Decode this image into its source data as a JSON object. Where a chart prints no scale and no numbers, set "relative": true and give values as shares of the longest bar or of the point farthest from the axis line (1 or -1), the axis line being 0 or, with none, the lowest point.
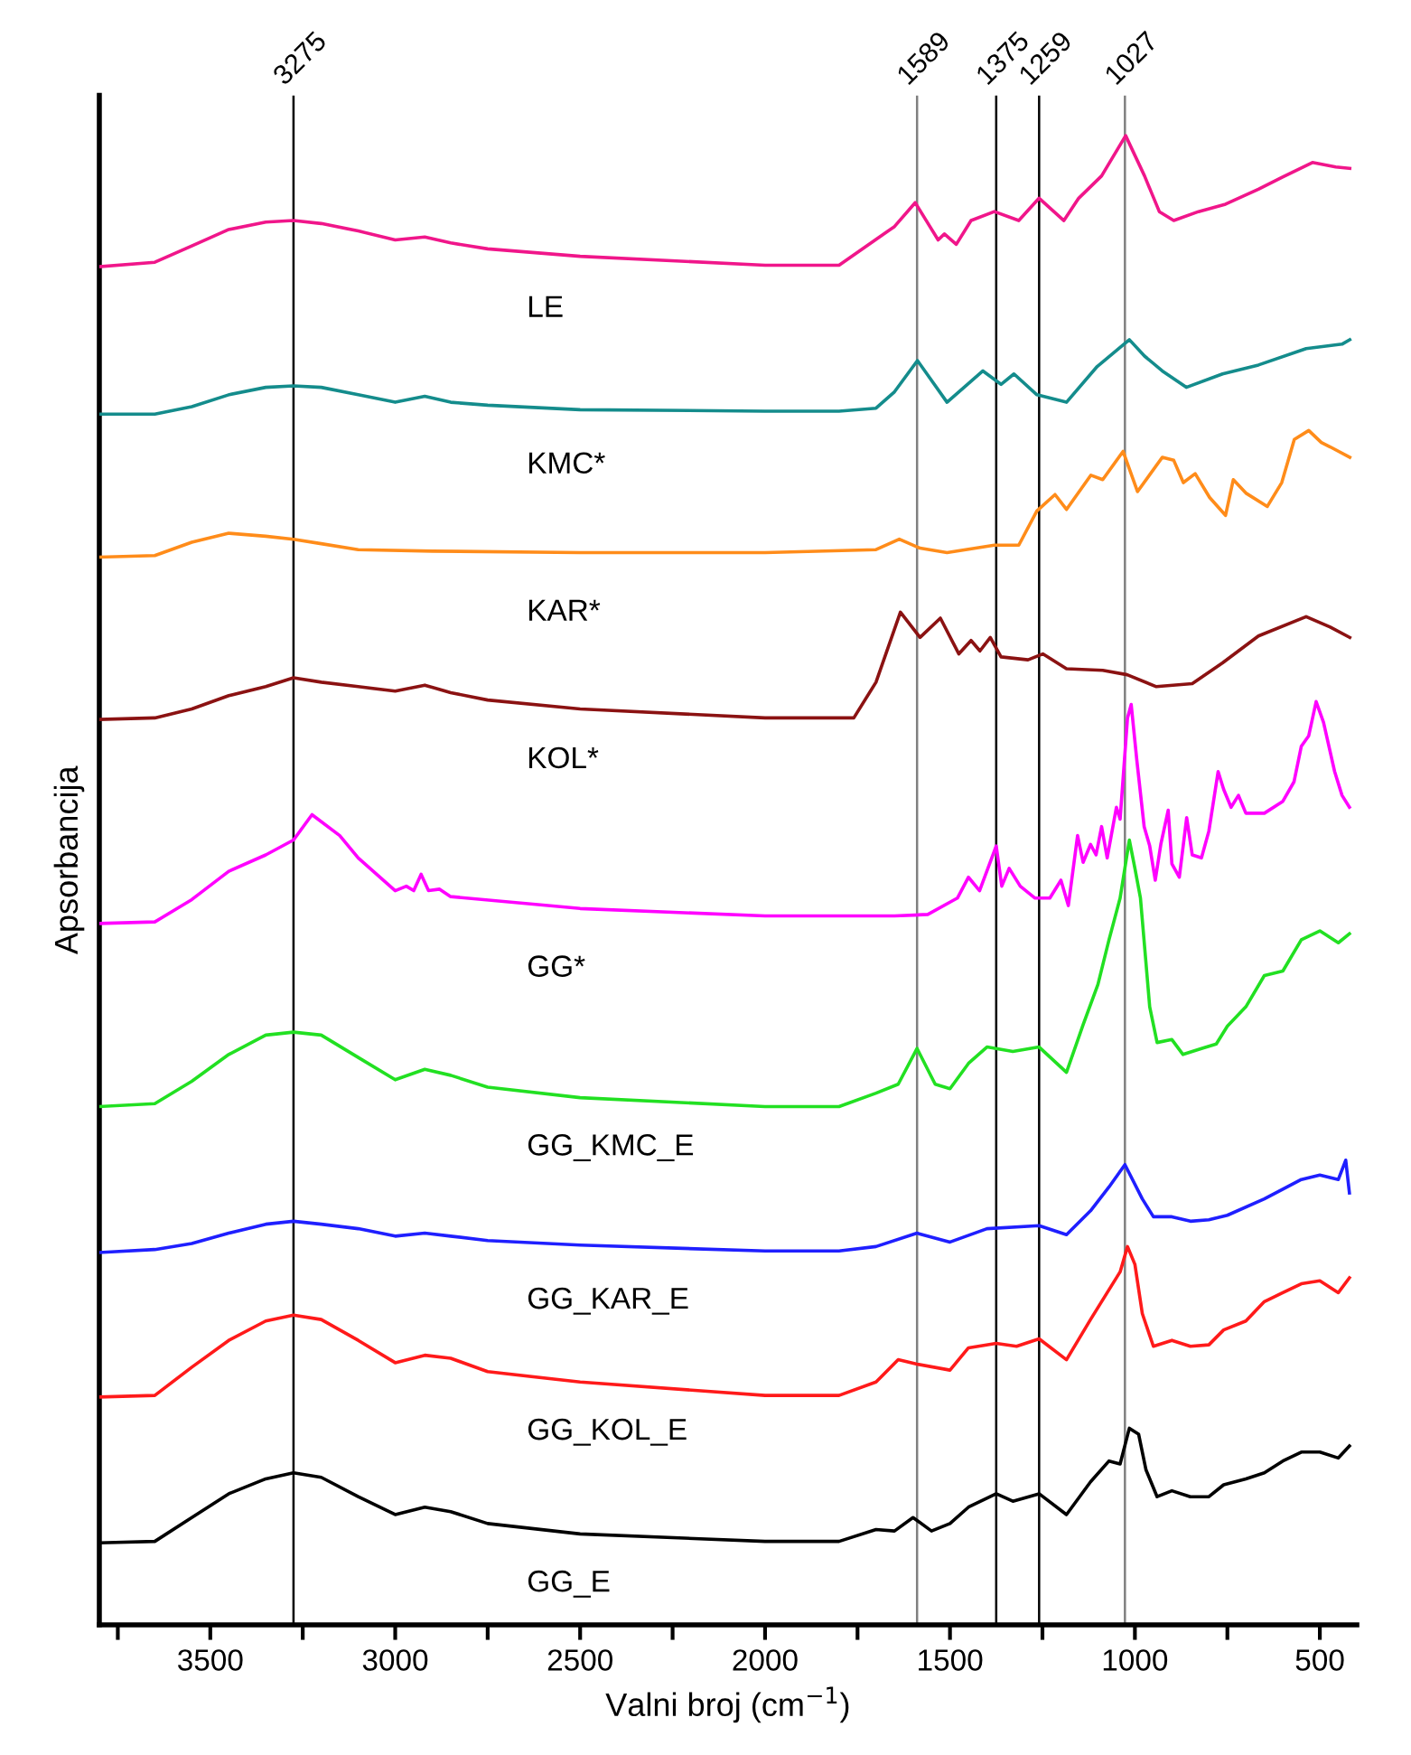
{
  "chart_data": {
    "type": "line",
    "relative": true,
    "xlabel": "Valni broj (cm$^{−1}$)",
    "ylabel": "Apsorbancija",
    "xlim": [
      3800,
      400
    ],
    "xticks": [
      {
        "value": 3750,
        "label": null
      },
      3500,
      {
        "value": 3250,
        "label": null
      },
      3000,
      {
        "value": 2750,
        "label": null
      },
      2500,
      {
        "value": 2250,
        "label": null
      },
      2000,
      {
        "value": 1750,
        "label": null
      },
      1500,
      {
        "value": 1250,
        "label": null
      },
      1000,
      {
        "value": 750,
        "label": null
      },
      500
    ],
    "tick_labels": "x",
    "grid": false,
    "legend": false,
    "marker": "none",
    "line_style": "solid",
    "ref_lines": [
      {
        "axis": "x",
        "value": 3275,
        "label": "3275",
        "color": "#000000"
      },
      {
        "axis": "x",
        "value": 1589,
        "label": "1589",
        "color": "#808080"
      },
      {
        "axis": "x",
        "value": 1375,
        "label": "1375",
        "color": "#000000"
      },
      {
        "axis": "x",
        "value": 1259,
        "label": "1259",
        "color": "#000000"
      },
      {
        "axis": "x",
        "value": 1027,
        "label": "1027",
        "color": "#808080"
      }
    ],
    "series": [
      {
        "name": "LE",
        "color": "#f0168a",
        "x": [
          3800,
          3650,
          3550,
          3450,
          3350,
          3275,
          3200,
          3100,
          3000,
          2920,
          2850,
          2750,
          2500,
          2000,
          1800,
          1702,
          1650,
          1594,
          1532,
          1515,
          1483,
          1443,
          1380,
          1314,
          1259,
          1192,
          1152,
          1090,
          1025,
          974,
          934,
          895,
          828,
          755,
          666,
          603,
          520,
          457,
          419
        ],
        "values": [
          0.912,
          0.915,
          0.926,
          0.937,
          0.942,
          0.943,
          0.941,
          0.936,
          0.93,
          0.932,
          0.928,
          0.924,
          0.919,
          0.913,
          0.913,
          0.93,
          0.939,
          0.955,
          0.93,
          0.934,
          0.927,
          0.943,
          0.949,
          0.943,
          0.958,
          0.943,
          0.958,
          0.973,
          1.0,
          0.973,
          0.949,
          0.943,
          0.949,
          0.954,
          0.964,
          0.972,
          0.982,
          0.979,
          0.978
        ]
      },
      {
        "name": "KMC*",
        "color": "#148c8c",
        "x": [
          3800,
          3650,
          3550,
          3450,
          3350,
          3275,
          3200,
          3100,
          3000,
          2920,
          2850,
          2750,
          2500,
          2000,
          1800,
          1700,
          1650,
          1588,
          1508,
          1411,
          1362,
          1327,
          1265,
          1185,
          1102,
          1015,
          974,
          926,
          861,
          763,
          666,
          537,
          440,
          419
        ],
        "values": [
          0.813,
          0.813,
          0.818,
          0.826,
          0.831,
          0.832,
          0.831,
          0.826,
          0.821,
          0.825,
          0.821,
          0.819,
          0.816,
          0.815,
          0.815,
          0.817,
          0.828,
          0.849,
          0.821,
          0.842,
          0.833,
          0.84,
          0.826,
          0.821,
          0.845,
          0.863,
          0.852,
          0.842,
          0.831,
          0.84,
          0.846,
          0.857,
          0.86,
          0.863
        ]
      },
      {
        "name": "KAR*",
        "color": "#ff8c1a",
        "x": [
          3800,
          3650,
          3550,
          3450,
          3350,
          3275,
          3200,
          3100,
          2900,
          2500,
          2000,
          1700,
          1637,
          1581,
          1508,
          1380,
          1314,
          1265,
          1216,
          1185,
          1119,
          1087,
          1032,
          993,
          926,
          895,
          869,
          837,
          798,
          755,
          734,
          700,
          642,
          603,
          569,
          530,
          496,
          472,
          419
        ],
        "values": [
          0.717,
          0.718,
          0.727,
          0.733,
          0.731,
          0.729,
          0.726,
          0.722,
          0.721,
          0.72,
          0.72,
          0.722,
          0.729,
          0.723,
          0.72,
          0.725,
          0.725,
          0.748,
          0.759,
          0.749,
          0.772,
          0.769,
          0.788,
          0.761,
          0.784,
          0.782,
          0.767,
          0.773,
          0.757,
          0.745,
          0.769,
          0.76,
          0.751,
          0.767,
          0.796,
          0.802,
          0.794,
          0.791,
          0.784
        ]
      },
      {
        "name": "KOL*",
        "color": "#8b1212",
        "x": [
          3800,
          3650,
          3550,
          3450,
          3350,
          3275,
          3200,
          3100,
          3000,
          2920,
          2850,
          2750,
          2500,
          2000,
          1800,
          1760,
          1700,
          1634,
          1581,
          1526,
          1476,
          1443,
          1419,
          1391,
          1362,
          1289,
          1249,
          1185,
          1087,
          1021,
          942,
          845,
          763,
          666,
          537,
          472,
          419
        ],
        "values": [
          0.608,
          0.609,
          0.615,
          0.624,
          0.63,
          0.636,
          0.633,
          0.63,
          0.627,
          0.631,
          0.626,
          0.621,
          0.615,
          0.609,
          0.609,
          0.609,
          0.633,
          0.68,
          0.663,
          0.676,
          0.652,
          0.661,
          0.654,
          0.663,
          0.65,
          0.648,
          0.652,
          0.642,
          0.641,
          0.638,
          0.63,
          0.632,
          0.646,
          0.664,
          0.677,
          0.67,
          0.663
        ]
      },
      {
        "name": "GG*",
        "color": "#ff00ff",
        "x": [
          3800,
          3650,
          3550,
          3450,
          3350,
          3275,
          3225,
          3150,
          3100,
          3000,
          2970,
          2950,
          2930,
          2910,
          2880,
          2850,
          2500,
          2000,
          1800,
          1650,
          1560,
          1480,
          1450,
          1420,
          1375,
          1360,
          1340,
          1310,
          1270,
          1230,
          1200,
          1180,
          1155,
          1140,
          1120,
          1105,
          1090,
          1075,
          1050,
          1040,
          1020,
          1010,
          995,
          975,
          960,
          945,
          930,
          910,
          900,
          880,
          860,
          845,
          820,
          800,
          775,
          760,
          740,
          720,
          700,
          650,
          600,
          570,
          550,
          530,
          510,
          490,
          460,
          440,
          420
        ],
        "values": [
          0.471,
          0.472,
          0.487,
          0.506,
          0.517,
          0.527,
          0.544,
          0.53,
          0.515,
          0.493,
          0.496,
          0.493,
          0.504,
          0.493,
          0.494,
          0.489,
          0.481,
          0.476,
          0.476,
          0.476,
          0.477,
          0.488,
          0.502,
          0.493,
          0.523,
          0.496,
          0.508,
          0.496,
          0.488,
          0.488,
          0.5,
          0.483,
          0.53,
          0.512,
          0.524,
          0.517,
          0.536,
          0.515,
          0.549,
          0.541,
          0.609,
          0.618,
          0.581,
          0.536,
          0.523,
          0.5,
          0.524,
          0.547,
          0.511,
          0.502,
          0.542,
          0.517,
          0.515,
          0.533,
          0.573,
          0.561,
          0.549,
          0.557,
          0.545,
          0.545,
          0.553,
          0.566,
          0.59,
          0.597,
          0.62,
          0.606,
          0.573,
          0.557,
          0.549
        ]
      },
      {
        "name": "GG_KMC_E",
        "color": "#22e022",
        "x": [
          3800,
          3650,
          3550,
          3450,
          3350,
          3275,
          3200,
          3100,
          3000,
          2920,
          2850,
          2750,
          2500,
          2000,
          1800,
          1700,
          1640,
          1589,
          1540,
          1500,
          1450,
          1400,
          1330,
          1259,
          1185,
          1140,
          1100,
          1070,
          1040,
          1015,
          1000,
          985,
          960,
          940,
          900,
          870,
          820,
          780,
          750,
          700,
          650,
          600,
          550,
          500,
          450,
          420
        ],
        "values": [
          0.348,
          0.35,
          0.365,
          0.383,
          0.396,
          0.398,
          0.396,
          0.381,
          0.366,
          0.373,
          0.369,
          0.361,
          0.354,
          0.348,
          0.348,
          0.357,
          0.363,
          0.387,
          0.363,
          0.36,
          0.377,
          0.388,
          0.385,
          0.388,
          0.371,
          0.403,
          0.43,
          0.46,
          0.488,
          0.527,
          0.508,
          0.488,
          0.415,
          0.391,
          0.393,
          0.383,
          0.387,
          0.39,
          0.402,
          0.415,
          0.436,
          0.439,
          0.46,
          0.466,
          0.458,
          0.464
        ]
      },
      {
        "name": "GG_KAR_E",
        "color": "#1f1fff",
        "x": [
          3800,
          3650,
          3550,
          3450,
          3350,
          3275,
          3200,
          3100,
          3000,
          2920,
          2850,
          2750,
          2500,
          2000,
          1800,
          1700,
          1589,
          1500,
          1400,
          1259,
          1185,
          1120,
          1070,
          1027,
          980,
          950,
          900,
          850,
          800,
          750,
          650,
          550,
          500,
          450,
          430,
          420
        ],
        "values": [
          0.25,
          0.252,
          0.256,
          0.263,
          0.269,
          0.271,
          0.269,
          0.266,
          0.261,
          0.263,
          0.261,
          0.258,
          0.255,
          0.251,
          0.251,
          0.254,
          0.263,
          0.257,
          0.266,
          0.268,
          0.262,
          0.278,
          0.294,
          0.309,
          0.286,
          0.274,
          0.274,
          0.271,
          0.272,
          0.275,
          0.286,
          0.299,
          0.302,
          0.299,
          0.312,
          0.29
        ]
      },
      {
        "name": "GG_KOL_E",
        "color": "#ff1a1a",
        "x": [
          3800,
          3650,
          3550,
          3450,
          3350,
          3275,
          3200,
          3100,
          3000,
          2920,
          2850,
          2750,
          2500,
          2000,
          1800,
          1700,
          1640,
          1589,
          1500,
          1450,
          1375,
          1320,
          1259,
          1185,
          1120,
          1070,
          1040,
          1020,
          1000,
          980,
          950,
          900,
          850,
          800,
          760,
          700,
          650,
          600,
          550,
          500,
          450,
          420
        ],
        "values": [
          0.153,
          0.154,
          0.173,
          0.191,
          0.204,
          0.208,
          0.205,
          0.191,
          0.176,
          0.181,
          0.179,
          0.17,
          0.163,
          0.154,
          0.154,
          0.163,
          0.178,
          0.175,
          0.171,
          0.186,
          0.189,
          0.187,
          0.192,
          0.178,
          0.205,
          0.225,
          0.237,
          0.254,
          0.242,
          0.209,
          0.187,
          0.191,
          0.187,
          0.188,
          0.198,
          0.204,
          0.217,
          0.223,
          0.229,
          0.231,
          0.223,
          0.233
        ]
      },
      {
        "name": "GG_E",
        "color": "#000000",
        "x": [
          3800,
          3650,
          3550,
          3450,
          3350,
          3275,
          3200,
          3100,
          3000,
          2920,
          2850,
          2750,
          2500,
          2000,
          1800,
          1700,
          1650,
          1600,
          1550,
          1500,
          1450,
          1375,
          1330,
          1259,
          1185,
          1120,
          1070,
          1040,
          1015,
          990,
          970,
          940,
          900,
          850,
          800,
          760,
          700,
          650,
          600,
          550,
          500,
          450,
          420
        ],
        "values": [
          0.055,
          0.056,
          0.072,
          0.088,
          0.098,
          0.102,
          0.099,
          0.086,
          0.074,
          0.079,
          0.076,
          0.068,
          0.061,
          0.056,
          0.056,
          0.064,
          0.063,
          0.072,
          0.063,
          0.068,
          0.079,
          0.088,
          0.083,
          0.088,
          0.074,
          0.096,
          0.11,
          0.108,
          0.132,
          0.128,
          0.104,
          0.086,
          0.09,
          0.086,
          0.086,
          0.094,
          0.098,
          0.102,
          0.11,
          0.116,
          0.116,
          0.112,
          0.12
        ]
      }
    ]
  }
}
